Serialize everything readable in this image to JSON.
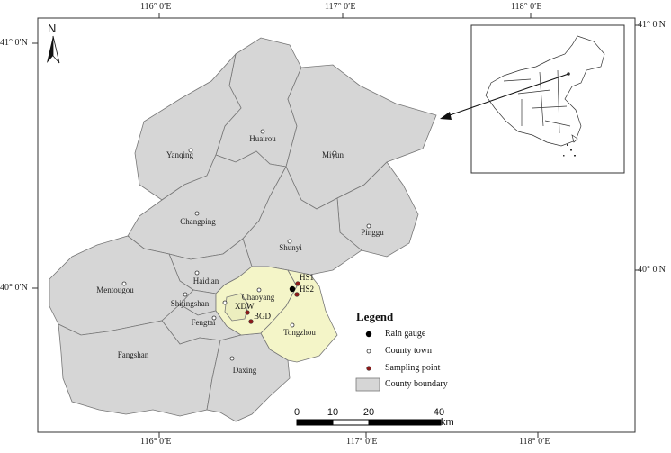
{
  "map": {
    "north_label": "N",
    "ticks": {
      "top": [
        "116° 0′E",
        "117° 0′E",
        "118° 0′E"
      ],
      "bottom": [
        "116° 0′E",
        "117° 0′E",
        "118° 0′E"
      ],
      "left": [
        "41° 0′N",
        "40° 0′N"
      ],
      "right": [
        "41° 0′N",
        "40° 0′N"
      ]
    },
    "counties": [
      "Huairou",
      "Yanqing",
      "Miyun",
      "Changping",
      "Pinggu",
      "Shunyi",
      "Haidian",
      "Mentougou",
      "Chaoyang",
      "Shijingshan",
      "Fengtai",
      "Tongzhou",
      "Fangshan",
      "Daxing"
    ],
    "sites": [
      "HS1",
      "HS2",
      "XDW",
      "BGD"
    ],
    "colors": {
      "county_fill": "#d6d6d6",
      "highlight_fill": "#f4f5c8",
      "boundary": "#777777",
      "rain_gauge": "#000000",
      "sampling_point": "#8b1a1a"
    }
  },
  "legend": {
    "title": "Legend",
    "items": [
      {
        "label": "Rain gauge",
        "symbol": "black-dot"
      },
      {
        "label": "County town",
        "symbol": "open-dot"
      },
      {
        "label": "Sampling point",
        "symbol": "red-dot"
      },
      {
        "label": "County boundary",
        "symbol": "gray-box"
      }
    ]
  },
  "scale_bar": {
    "labels": [
      "0",
      "10",
      "20",
      "40"
    ],
    "unit": "km"
  }
}
